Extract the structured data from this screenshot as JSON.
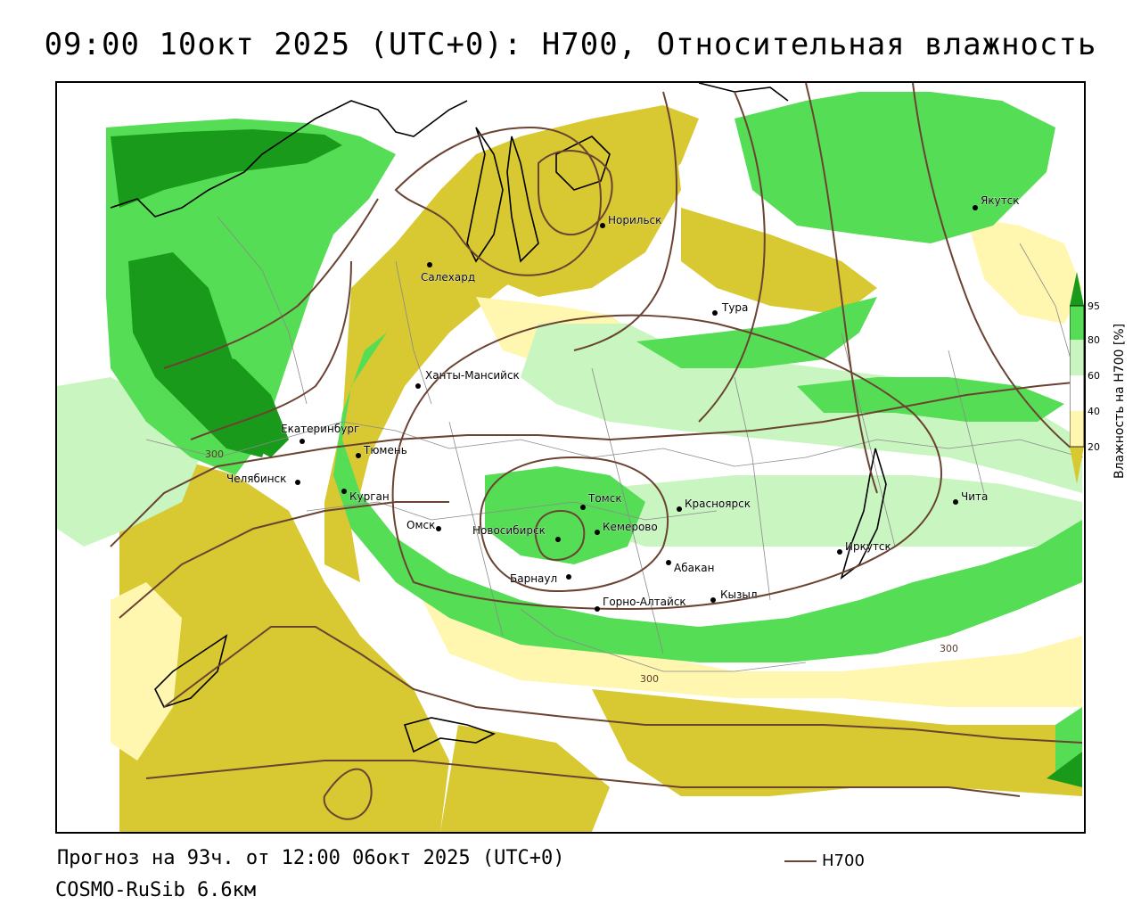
{
  "header": {
    "title": "09:00 10окт 2025 (UTC+0): H700, Относительная влажность"
  },
  "footer": {
    "forecast_text": "Прогноз на 93ч. от 12:00 06окт 2025 (UTC+0)",
    "model_text": "COSMO-RuSib 6.6км"
  },
  "legend": {
    "line_label": "H700",
    "line_color": "#6b4332"
  },
  "colorbar": {
    "title": "Влажность на H700 [%]",
    "ticks": [
      "95",
      "80",
      "60",
      "40",
      "20"
    ],
    "colors": {
      "very_dry": "#d8c832",
      "dry": "#fff7b0",
      "neutral": "#ffffff",
      "moist": "#c8f5c0",
      "wet": "#55dd55",
      "very_wet": "#1a9a1a"
    }
  },
  "contour_labels": [
    "300",
    "300",
    "300"
  ],
  "cities": [
    {
      "name": "Якутск"
    },
    {
      "name": "Норильск"
    },
    {
      "name": "Салехард"
    },
    {
      "name": "Тура"
    },
    {
      "name": "Ханты-Мансийск"
    },
    {
      "name": "Екатеринбург"
    },
    {
      "name": "Тюмень"
    },
    {
      "name": "Челябинск"
    },
    {
      "name": "Курган"
    },
    {
      "name": "Омск"
    },
    {
      "name": "Томск"
    },
    {
      "name": "Красноярск"
    },
    {
      "name": "Новосибирск"
    },
    {
      "name": "Кемерово"
    },
    {
      "name": "Абакан"
    },
    {
      "name": "Иркутск"
    },
    {
      "name": "Барнаул"
    },
    {
      "name": "Горно-Алтайск"
    },
    {
      "name": "Кызыл"
    },
    {
      "name": "Чита"
    }
  ]
}
